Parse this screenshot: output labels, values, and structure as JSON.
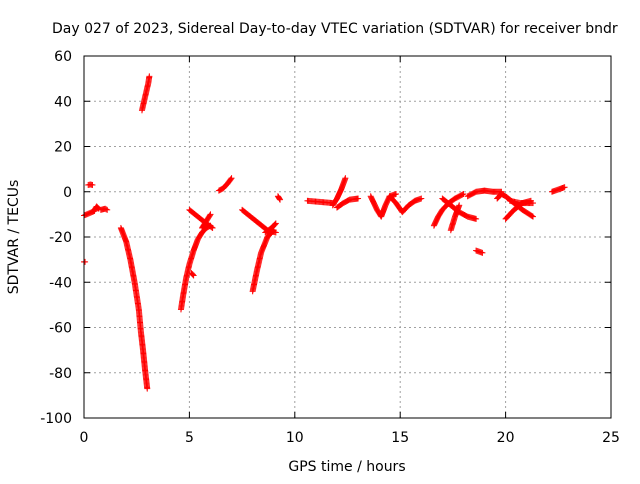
{
  "chart_data": {
    "type": "scatter",
    "title": "Day 027 of 2023, Sidereal Day-to-day VTEC variation (SDTVAR) for receiver bndr",
    "xlabel": "GPS time / hours",
    "ylabel": "SDTVAR / TECUs",
    "xlim": [
      0,
      25
    ],
    "ylim": [
      -100,
      60
    ],
    "xticks": [
      0,
      5,
      10,
      15,
      20,
      25
    ],
    "yticks": [
      -100,
      -80,
      -60,
      -40,
      -20,
      0,
      20,
      40,
      60
    ],
    "grid": true,
    "legend": "none",
    "marker": "+",
    "color": "#ff0000",
    "segments": [
      {
        "x": [
          0.0,
          0.25,
          0.5
        ],
        "y": [
          -10.5,
          -9.5,
          -8.5
        ]
      },
      {
        "x": [
          0.0,
          0.05
        ],
        "y": [
          -31,
          -31
        ]
      },
      {
        "x": [
          0.2,
          0.3,
          0.4
        ],
        "y": [
          3,
          3.2,
          3
        ]
      },
      {
        "x": [
          0.5,
          0.6,
          0.7
        ],
        "y": [
          -8,
          -6.5,
          -7.5
        ]
      },
      {
        "x": [
          0.8,
          1.0,
          1.1
        ],
        "y": [
          -8,
          -7.5,
          -8
        ]
      },
      {
        "x": [
          1.75,
          2.0,
          2.2,
          2.4,
          2.6,
          2.7,
          2.8,
          2.9,
          3.0
        ],
        "y": [
          -16,
          -22,
          -30,
          -40,
          -52,
          -62,
          -70,
          -79,
          -87
        ]
      },
      {
        "x": [
          2.75,
          2.85,
          2.95,
          3.05,
          3.1
        ],
        "y": [
          36,
          40,
          44,
          48,
          51
        ]
      },
      {
        "x": [
          4.6,
          4.7,
          4.85,
          5.0,
          5.2,
          5.4,
          5.6,
          5.8,
          6.0
        ],
        "y": [
          -52,
          -46,
          -38,
          -32,
          -26,
          -21,
          -18,
          -16,
          -15
        ]
      },
      {
        "x": [
          5.1,
          5.2
        ],
        "y": [
          -36,
          -37
        ]
      },
      {
        "x": [
          5.0,
          5.4,
          5.8,
          6.1
        ],
        "y": [
          -8,
          -11,
          -14,
          -16
        ]
      },
      {
        "x": [
          5.6,
          5.8,
          6.0
        ],
        "y": [
          -16,
          -13,
          -10
        ]
      },
      {
        "x": [
          6.4,
          6.6,
          6.8,
          7.0
        ],
        "y": [
          0.5,
          1.5,
          3.5,
          6
        ]
      },
      {
        "x": [
          8.0,
          8.2,
          8.4,
          8.7,
          9.0
        ],
        "y": [
          -44,
          -35,
          -27,
          -20,
          -17
        ]
      },
      {
        "x": [
          7.5,
          7.9,
          8.3,
          8.7,
          9.1
        ],
        "y": [
          -8,
          -11,
          -14,
          -17,
          -18
        ]
      },
      {
        "x": [
          8.6,
          8.9,
          9.1
        ],
        "y": [
          -18,
          -16,
          -14
        ]
      },
      {
        "x": [
          9.2,
          9.3
        ],
        "y": [
          -2,
          -3.5
        ]
      },
      {
        "x": [
          10.6,
          11.2,
          11.8
        ],
        "y": [
          -4,
          -4.5,
          -5
        ]
      },
      {
        "x": [
          11.8,
          12.0,
          12.2,
          12.4
        ],
        "y": [
          -6,
          -3,
          1,
          6
        ]
      },
      {
        "x": [
          12.0,
          12.3,
          12.6,
          13.0
        ],
        "y": [
          -7,
          -5,
          -3.5,
          -3
        ]
      },
      {
        "x": [
          13.6,
          13.9,
          14.1,
          14.3,
          14.5,
          14.8
        ],
        "y": [
          -2,
          -8,
          -11,
          -6,
          -2,
          -1
        ]
      },
      {
        "x": [
          14.5,
          14.8,
          15.1,
          15.4,
          15.7,
          16.0
        ],
        "y": [
          -2,
          -5,
          -9,
          -6,
          -4,
          -3
        ]
      },
      {
        "x": [
          16.6,
          16.8,
          17.0,
          17.3,
          17.6,
          18.0
        ],
        "y": [
          -15,
          -11,
          -8,
          -5,
          -3,
          -1
        ]
      },
      {
        "x": [
          17.0,
          17.4,
          17.8,
          18.2,
          18.6
        ],
        "y": [
          -3,
          -6,
          -9,
          -11,
          -12
        ]
      },
      {
        "x": [
          17.4,
          17.6,
          17.8
        ],
        "y": [
          -17,
          -11,
          -6
        ]
      },
      {
        "x": [
          18.6,
          18.9
        ],
        "y": [
          -26,
          -27
        ]
      },
      {
        "x": [
          18.2,
          18.6,
          19.0,
          19.4,
          19.8
        ],
        "y": [
          -2,
          0,
          0.5,
          0,
          0
        ]
      },
      {
        "x": [
          19.6,
          19.8,
          20.0,
          20.4,
          20.8,
          21.3
        ],
        "y": [
          -3,
          -1,
          -2,
          -5,
          -8,
          -11
        ]
      },
      {
        "x": [
          20.0,
          20.4,
          20.8,
          21.2
        ],
        "y": [
          -12,
          -8,
          -5,
          -4
        ]
      },
      {
        "x": [
          20.2,
          20.7,
          21.3
        ],
        "y": [
          -4,
          -5,
          -5
        ]
      },
      {
        "x": [
          22.2,
          22.5,
          22.8
        ],
        "y": [
          0,
          1,
          2
        ]
      }
    ]
  }
}
